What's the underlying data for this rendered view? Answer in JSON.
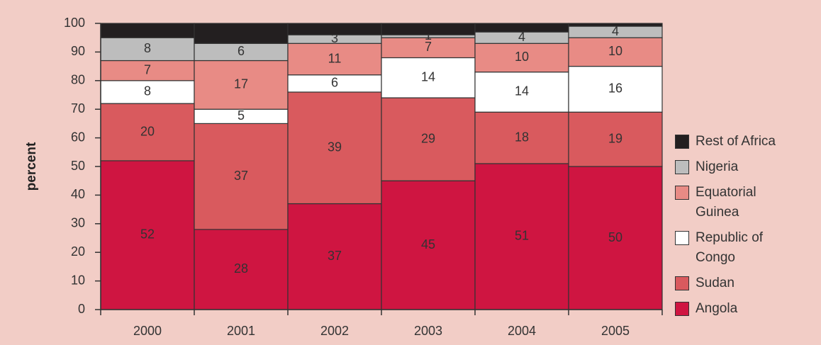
{
  "chart_data": {
    "type": "stacked_bar",
    "y_label": "percent",
    "categories": [
      "2000",
      "2001",
      "2002",
      "2003",
      "2004",
      "2005"
    ],
    "series": [
      {
        "name": "Angola",
        "color": "#cf1541",
        "values": [
          52,
          28,
          37,
          45,
          51,
          50
        ]
      },
      {
        "name": "Sudan",
        "color": "#d95a5e",
        "values": [
          20,
          37,
          39,
          29,
          18,
          19
        ]
      },
      {
        "name": "Republic of Congo",
        "color": "#ffffff",
        "values": [
          8,
          5,
          6,
          14,
          14,
          16
        ]
      },
      {
        "name": "Equatorial Guinea",
        "color": "#e88b85",
        "values": [
          7,
          17,
          11,
          7,
          10,
          10
        ]
      },
      {
        "name": "Nigeria",
        "color": "#bdbdbd",
        "values": [
          8,
          6,
          3,
          1,
          4,
          4
        ]
      },
      {
        "name": "Rest of Africa",
        "color": "#231f20",
        "values": [
          5,
          7,
          4,
          4,
          3,
          1
        ],
        "data_labels": false
      }
    ],
    "ylim": [
      0,
      100
    ],
    "yticks": [
      0,
      10,
      20,
      30,
      40,
      50,
      60,
      70,
      80,
      90,
      100
    ],
    "legend": "right"
  }
}
